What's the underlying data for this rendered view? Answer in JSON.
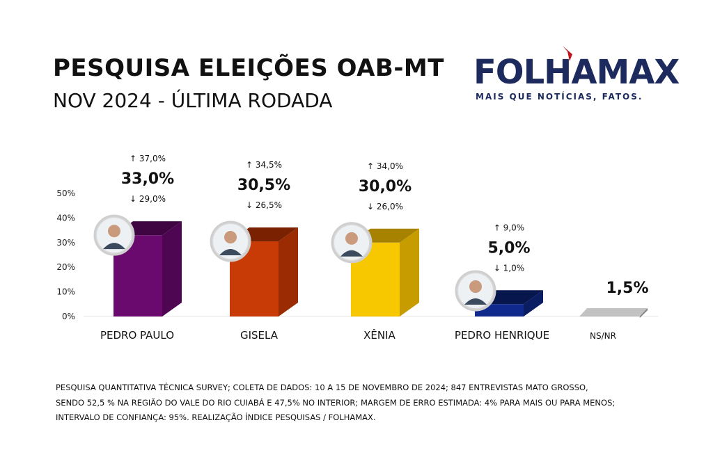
{
  "header": {
    "title": "PESQUISA ELEIÇÕES OAB-MT",
    "subtitle": "NOV 2024 - ÚLTIMA RODADA"
  },
  "logo": {
    "name": "FOLHAMAX",
    "tagline": "MAIS QUE NOTÍCIAS, FATOS.",
    "color": "#1c2a5e",
    "accent": "#c0141c"
  },
  "chart_data": {
    "type": "bar",
    "title": "",
    "xlabel": "",
    "ylabel": "",
    "ylim": [
      0,
      50
    ],
    "yticks": [
      "0%",
      "10%",
      "20%",
      "30%",
      "40%",
      "50%"
    ],
    "categories": [
      "PEDRO PAULO",
      "GISELA",
      "XÊNIA",
      "PEDRO HENRIQUE",
      "NS/NR"
    ],
    "values": [
      33.0,
      30.5,
      30.0,
      5.0,
      1.5
    ],
    "value_labels": [
      "33,0%",
      "30,5%",
      "30,0%",
      "5,0%",
      "1,5%"
    ],
    "upper_labels": [
      "↑ 37,0%",
      "↑ 34,5%",
      "↑ 34,0%",
      "↑ 9,0%",
      ""
    ],
    "lower_labels": [
      "↓ 29,0%",
      "↓ 26,5%",
      "↓ 26,0%",
      "↓ 1,0%",
      ""
    ],
    "colors": [
      "#6a0a6e",
      "#c93b06",
      "#f7c800",
      "#0f2a8c",
      "#9e9e9e"
    ],
    "side_colors": [
      "#4e0552",
      "#9a2b02",
      "#c79c00",
      "#0a1d63",
      "#7d7d7d"
    ],
    "top_colors": [
      "#3f0442",
      "#7a2102",
      "#a68200",
      "#07164d",
      "#c2c2c2"
    ],
    "avatars": [
      "candidate-photo",
      "candidate-photo",
      "candidate-photo",
      "candidate-photo",
      ""
    ],
    "grid": false,
    "legend": "none"
  },
  "footnote": {
    "line1": "PESQUISA QUANTITATIVA TÉCNICA SURVEY; COLETA DE DADOS: 10 A 15 DE NOVEMBRO DE 2024; 847 ENTREVISTAS MATO GROSSO,",
    "line2": "SENDO 52,5 % NA REGIÃO DO VALE DO RIO CUIABÁ E 47,5% NO INTERIOR; MARGEM DE ERRO ESTIMADA: 4% PARA MAIS OU PARA MENOS;",
    "line3": "INTERVALO DE CONFIANÇA: 95%. REALIZAÇÃO ÍNDICE PESQUISAS / FOLHAMAX."
  }
}
